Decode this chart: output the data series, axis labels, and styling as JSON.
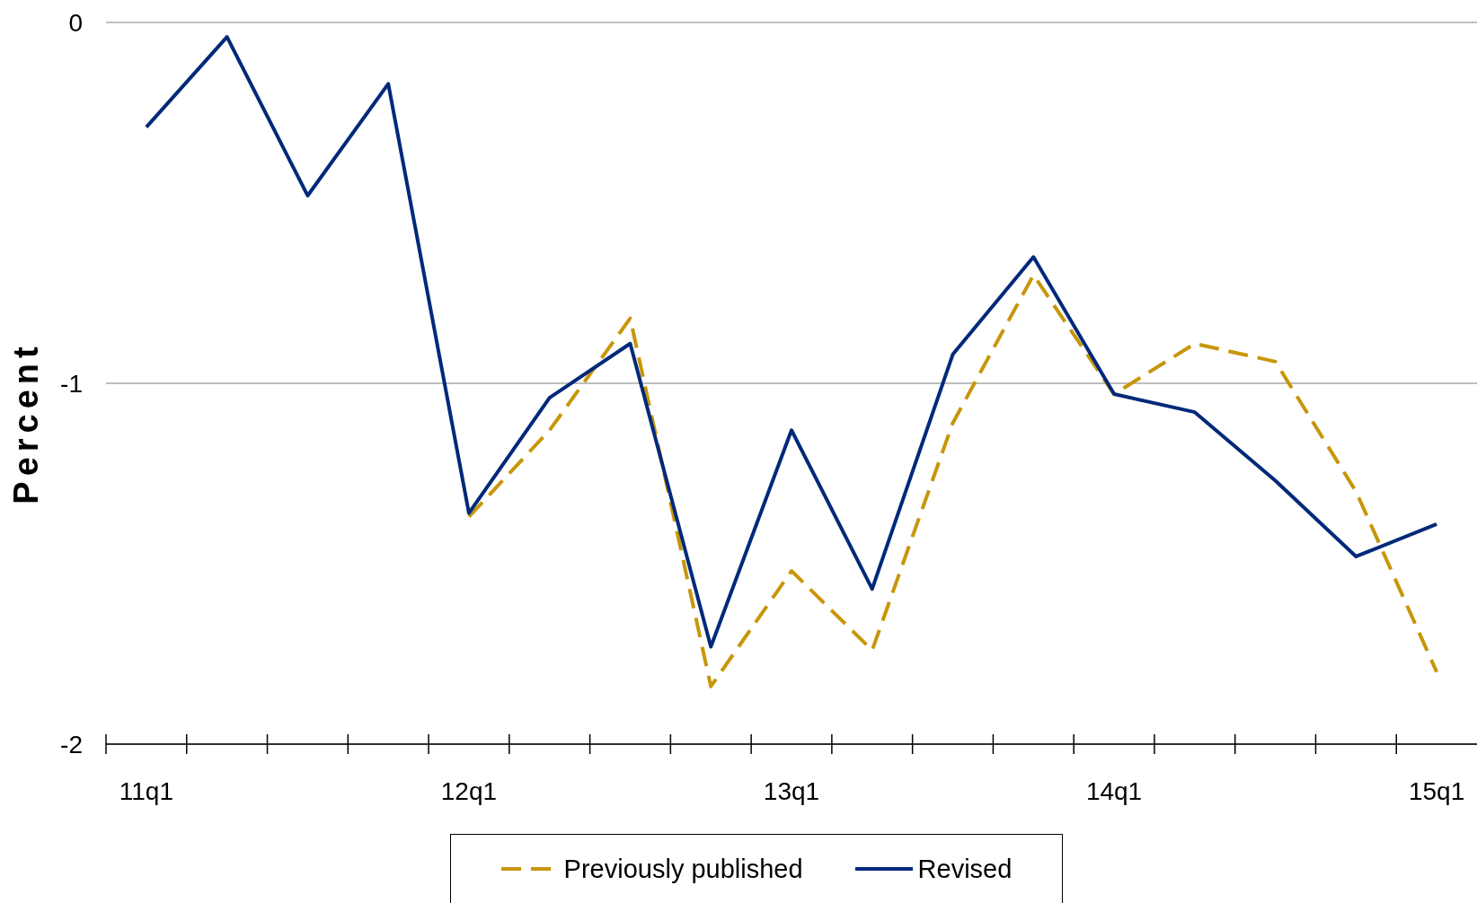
{
  "chart_data": {
    "type": "line",
    "ylabel": "Percent",
    "categories": [
      "11q1",
      null,
      null,
      null,
      "12q1",
      null,
      null,
      null,
      "13q1",
      null,
      null,
      null,
      "14q1",
      null,
      null,
      null,
      "15q1"
    ],
    "series": [
      {
        "name": "Previously published",
        "color": "#c8960a",
        "line_style": "dashed",
        "values": [
          null,
          null,
          null,
          null,
          -1.37,
          -1.13,
          -0.82,
          -1.84,
          -1.52,
          -1.74,
          -1.11,
          -0.7,
          -1.03,
          -0.89,
          -0.94,
          -1.3,
          -1.8
        ]
      },
      {
        "name": "Revised",
        "color": "#00297a",
        "line_style": "solid",
        "values": [
          -0.29,
          -0.04,
          -0.48,
          -0.17,
          -1.36,
          -1.04,
          -0.89,
          -1.73,
          -1.13,
          -1.57,
          -0.92,
          -0.65,
          -1.03,
          -1.08,
          -1.27,
          -1.48,
          -1.39
        ]
      }
    ],
    "ylim": [
      -2,
      0
    ],
    "yticks": [
      0,
      -1,
      -2
    ],
    "grid": "y",
    "legend": "bottom"
  }
}
